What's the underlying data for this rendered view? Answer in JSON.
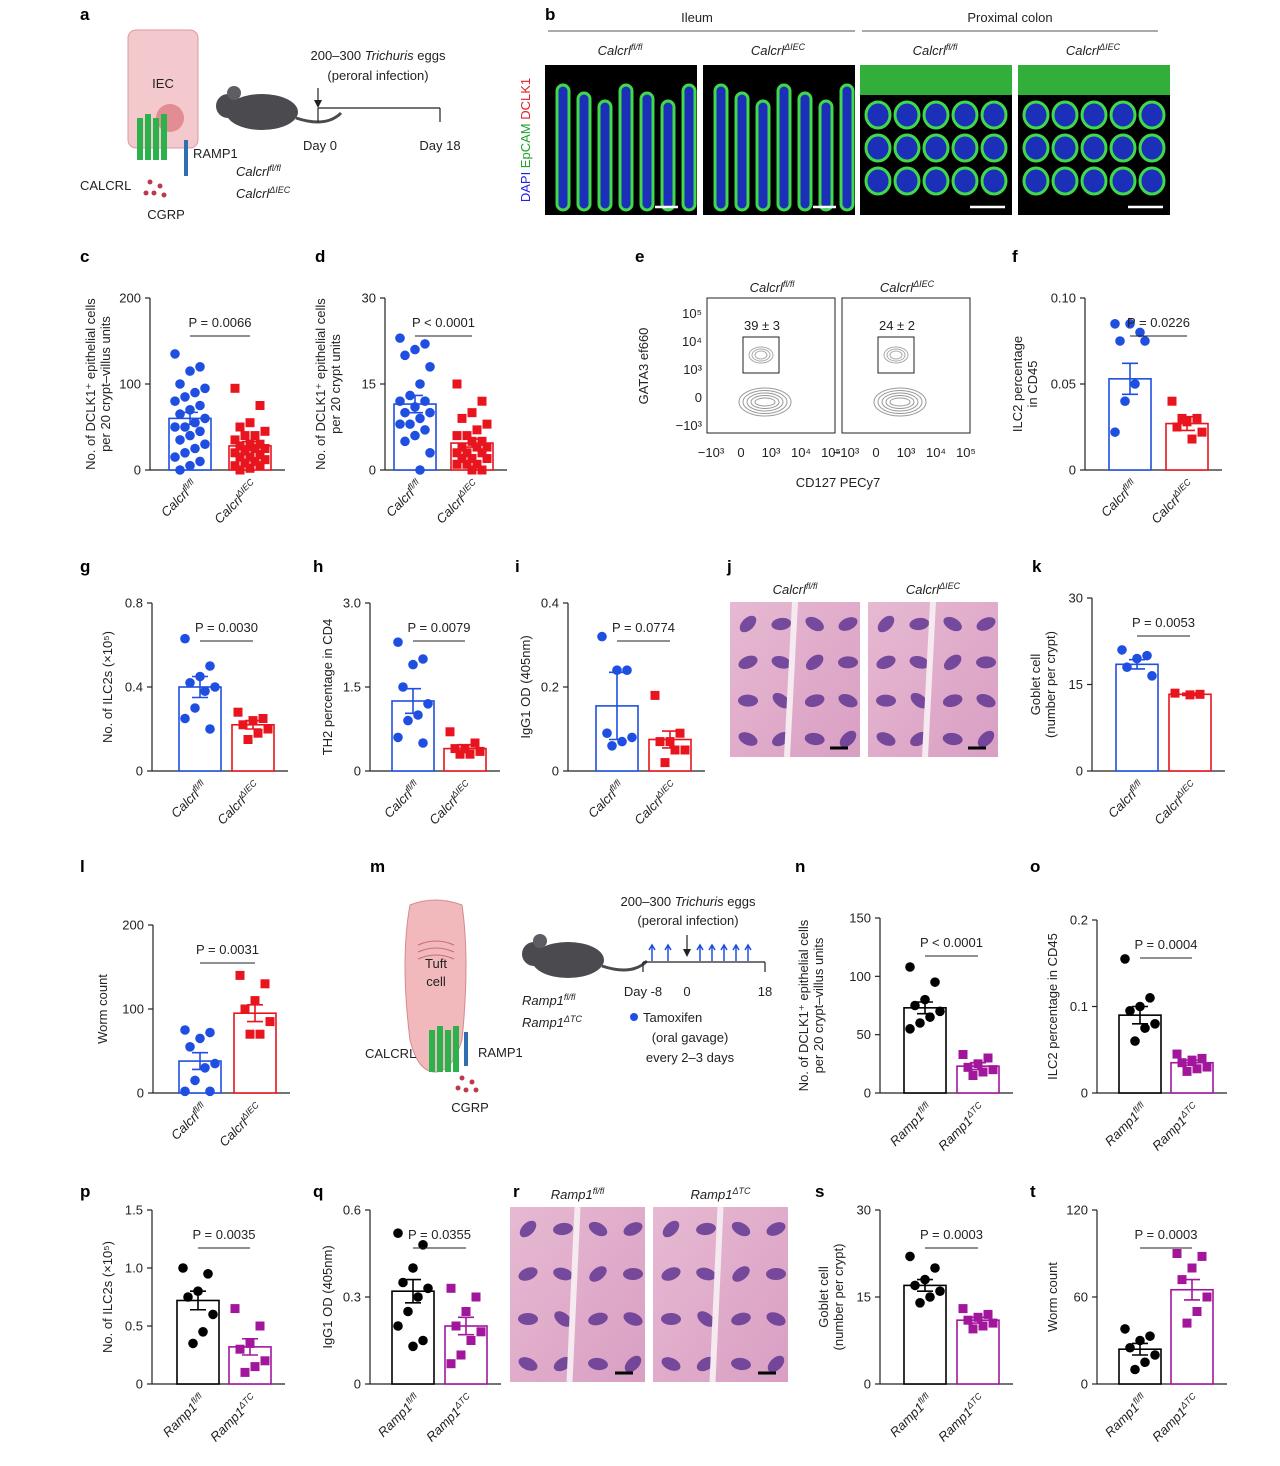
{
  "chart_data": [
    {
      "type": "bar",
      "panel": "c",
      "ylabel": [
        "No. of DCLK1⁺ epithelial cells",
        "per 20 crypt–villus units"
      ],
      "p_value": "P = 0.0066",
      "categories": [
        "Calcrl",
        "Calcrl"
      ],
      "category_sups": [
        "fl/fl",
        "ΔIEC"
      ],
      "colors": [
        "#1f4fe0",
        "#e8141e"
      ],
      "markers": [
        "circle",
        "square"
      ],
      "values": [
        60,
        28
      ],
      "errors": [
        7,
        5
      ],
      "points": [
        [
          135,
          120,
          115,
          100,
          95,
          90,
          85,
          80,
          75,
          70,
          65,
          60,
          55,
          50,
          50,
          45,
          40,
          35,
          30,
          25,
          20,
          15,
          10,
          5,
          0
        ],
        [
          95,
          75,
          55,
          50,
          45,
          40,
          40,
          35,
          30,
          30,
          28,
          25,
          25,
          22,
          20,
          18,
          15,
          15,
          12,
          10,
          8,
          5,
          5,
          2,
          0
        ]
      ],
      "ylim": [
        0,
        200
      ],
      "yticks": [
        0,
        100,
        200
      ]
    },
    {
      "type": "bar",
      "panel": "d",
      "ylabel": [
        "No. of DCLK1⁺ epithelial cells",
        "per 20 crypt units"
      ],
      "p_value": "P < 0.0001",
      "categories": [
        "Calcrl",
        "Calcrl"
      ],
      "category_sups": [
        "fl/fl",
        "ΔIEC"
      ],
      "colors": [
        "#1f4fe0",
        "#e8141e"
      ],
      "markers": [
        "circle",
        "square"
      ],
      "values": [
        11.5,
        4.7
      ],
      "errors": [
        1.5,
        0.7
      ],
      "points": [
        [
          23,
          22,
          21,
          20,
          18,
          15,
          13,
          12,
          12,
          11,
          10,
          10,
          9,
          8,
          8,
          7,
          6,
          5,
          3,
          0
        ],
        [
          15,
          12,
          10,
          9,
          8,
          7,
          6,
          6,
          5,
          5,
          4,
          4,
          4,
          3,
          3,
          3,
          2,
          2,
          2,
          1,
          1,
          1,
          0,
          0
        ]
      ],
      "ylim": [
        0,
        30
      ],
      "yticks": [
        0,
        15,
        30
      ]
    },
    {
      "type": "bar",
      "panel": "f",
      "ylabel": [
        "ILC2 percentage",
        "in CD45"
      ],
      "p_value": "P = 0.0226",
      "categories": [
        "Calcrl",
        "Calcrl"
      ],
      "category_sups": [
        "fl/fl",
        "ΔIEC"
      ],
      "colors": [
        "#1f4fe0",
        "#e8141e"
      ],
      "markers": [
        "circle",
        "square"
      ],
      "values": [
        0.053,
        0.027
      ],
      "errors": [
        0.009,
        0.004
      ],
      "points": [
        [
          0.085,
          0.08,
          0.085,
          0.075,
          0.075,
          0.05,
          0.04,
          0.022
        ],
        [
          0.04,
          0.03,
          0.028,
          0.025,
          0.022,
          0.018,
          0.03
        ]
      ],
      "ylim": [
        0,
        0.1
      ],
      "yticks": [
        0,
        0.05,
        {
          "value": 0.1,
          "label": "0.10"
        }
      ]
    },
    {
      "type": "bar",
      "panel": "g",
      "ylabel": [
        "No. of ILC2s (×10⁵)"
      ],
      "p_value": "P = 0.0030",
      "categories": [
        "Calcrl",
        "Calcrl"
      ],
      "category_sups": [
        "fl/fl",
        "ΔIEC"
      ],
      "colors": [
        "#1f4fe0",
        "#e8141e"
      ],
      "markers": [
        "circle",
        "square"
      ],
      "values": [
        0.4,
        0.22
      ],
      "errors": [
        0.05,
        0.02
      ],
      "points": [
        [
          0.63,
          0.5,
          0.45,
          0.42,
          0.4,
          0.38,
          0.3,
          0.25,
          0.2
        ],
        [
          0.28,
          0.25,
          0.24,
          0.22,
          0.2,
          0.18,
          0.15
        ]
      ],
      "ylim": [
        0,
        0.8
      ],
      "yticks": [
        0,
        0.4,
        0.8
      ]
    },
    {
      "type": "bar",
      "panel": "h",
      "ylabel": [
        "TH2 percentage in CD4"
      ],
      "p_value": "P = 0.0079",
      "categories": [
        "Calcrl",
        "Calcrl"
      ],
      "category_sups": [
        "fl/fl",
        "ΔIEC"
      ],
      "colors": [
        "#1f4fe0",
        "#e8141e"
      ],
      "markers": [
        "circle",
        "square"
      ],
      "values": [
        1.25,
        0.4
      ],
      "errors": [
        0.22,
        0.07
      ],
      "points": [
        [
          2.3,
          2.0,
          1.9,
          1.5,
          1.2,
          1.0,
          0.9,
          0.6,
          0.5
        ],
        [
          0.7,
          0.5,
          0.4,
          0.4,
          0.35,
          0.3,
          0.3
        ]
      ],
      "ylim": [
        0,
        3
      ],
      "yticks": [
        0,
        1.5,
        {
          "value": 3,
          "label": "3.0"
        }
      ]
    },
    {
      "type": "bar",
      "panel": "i",
      "ylabel": [
        "IgG1 OD (405nm)"
      ],
      "p_value": "P = 0.0774",
      "categories": [
        "Calcrl",
        "Calcrl"
      ],
      "category_sups": [
        "fl/fl",
        "ΔIEC"
      ],
      "colors": [
        "#1f4fe0",
        "#e8141e"
      ],
      "markers": [
        "circle",
        "square"
      ],
      "values": [
        0.155,
        0.075
      ],
      "errors": [
        0.08,
        0.02
      ],
      "points": [
        [
          0.32,
          0.24,
          0.24,
          0.09,
          0.08,
          0.07,
          0.06
        ],
        [
          0.18,
          0.09,
          0.07,
          0.07,
          0.05,
          0.05,
          0.02
        ]
      ],
      "ylim": [
        0,
        0.4
      ],
      "yticks": [
        0,
        0.2,
        0.4
      ]
    },
    {
      "type": "bar",
      "panel": "k",
      "ylabel": [
        "Goblet cell",
        "(number per crypt)"
      ],
      "p_value": "P = 0.0053",
      "categories": [
        "Calcrl",
        "Calcrl"
      ],
      "category_sups": [
        "fl/fl",
        "ΔIEC"
      ],
      "colors": [
        "#1f4fe0",
        "#e8141e"
      ],
      "markers": [
        "circle",
        "square"
      ],
      "values": [
        18.5,
        13.3
      ],
      "errors": [
        0.8,
        0.2
      ],
      "points": [
        [
          21,
          20,
          19.5,
          18,
          16.5
        ],
        [
          13.5,
          13.3,
          13.2
        ]
      ],
      "ylim": [
        0,
        30
      ],
      "yticks": [
        0,
        15,
        30
      ]
    },
    {
      "type": "bar",
      "panel": "l",
      "ylabel": [
        "Worm count"
      ],
      "p_value": "P = 0.0031",
      "categories": [
        "Calcrl",
        "Calcrl"
      ],
      "category_sups": [
        "fl/fl",
        "ΔIEC"
      ],
      "colors": [
        "#1f4fe0",
        "#e8141e"
      ],
      "markers": [
        "circle",
        "square"
      ],
      "values": [
        38,
        95
      ],
      "errors": [
        10,
        10
      ],
      "points": [
        [
          75,
          72,
          65,
          55,
          35,
          30,
          15,
          2,
          2
        ],
        [
          140,
          130,
          110,
          100,
          85,
          70,
          70
        ]
      ],
      "ylim": [
        0,
        200
      ],
      "yticks": [
        0,
        100,
        200
      ]
    },
    {
      "type": "bar",
      "panel": "n",
      "ylabel": [
        "No. of DCLK1⁺ epithelial cells",
        "per 20 crypt–villus units"
      ],
      "p_value": "P < 0.0001",
      "categories": [
        "Ramp1",
        "Ramp1"
      ],
      "category_sups": [
        "fl/fl",
        "ΔTC"
      ],
      "colors": [
        "#000000",
        "#a2169c"
      ],
      "markers": [
        "circle",
        "square"
      ],
      "values": [
        73,
        23
      ],
      "errors": [
        5,
        3
      ],
      "points": [
        [
          108,
          95,
          80,
          75,
          70,
          65,
          60,
          55
        ],
        [
          33,
          30,
          25,
          22,
          20,
          18,
          15
        ]
      ],
      "ylim": [
        0,
        150
      ],
      "yticks": [
        0,
        50,
        100,
        150
      ]
    },
    {
      "type": "bar",
      "panel": "o",
      "ylabel": [
        "ILC2 percentage in CD45"
      ],
      "p_value": "P = 0.0004",
      "categories": [
        "Ramp1",
        "Ramp1"
      ],
      "category_sups": [
        "fl/fl",
        "ΔTC"
      ],
      "colors": [
        "#000000",
        "#a2169c"
      ],
      "markers": [
        "circle",
        "square"
      ],
      "values": [
        0.09,
        0.035
      ],
      "errors": [
        0.01,
        0.003
      ],
      "points": [
        [
          0.155,
          0.11,
          0.1,
          0.095,
          0.08,
          0.075,
          0.06
        ],
        [
          0.045,
          0.04,
          0.038,
          0.035,
          0.03,
          0.028,
          0.025
        ]
      ],
      "ylim": [
        0,
        0.2
      ],
      "yticks": [
        0,
        0.1,
        0.2
      ]
    },
    {
      "type": "bar",
      "panel": "p",
      "ylabel": [
        "No. of ILC2s (×10⁵)"
      ],
      "p_value": "P = 0.0035",
      "categories": [
        "Ramp1",
        "Ramp1"
      ],
      "category_sups": [
        "fl/fl",
        "ΔTC"
      ],
      "colors": [
        "#000000",
        "#a2169c"
      ],
      "markers": [
        "circle",
        "square"
      ],
      "values": [
        0.72,
        0.32
      ],
      "errors": [
        0.08,
        0.07
      ],
      "points": [
        [
          1.0,
          0.95,
          0.8,
          0.75,
          0.6,
          0.45,
          0.35
        ],
        [
          0.65,
          0.5,
          0.35,
          0.3,
          0.2,
          0.15,
          0.1
        ]
      ],
      "ylim": [
        0,
        1.5
      ],
      "yticks": [
        0,
        0.5,
        {
          "value": 1,
          "label": "1.0"
        },
        1.5
      ]
    },
    {
      "type": "bar",
      "panel": "q",
      "ylabel": [
        "IgG1 OD (405nm)"
      ],
      "p_value": "P = 0.0355",
      "categories": [
        "Ramp1",
        "Ramp1"
      ],
      "category_sups": [
        "fl/fl",
        "ΔTC"
      ],
      "colors": [
        "#000000",
        "#a2169c"
      ],
      "markers": [
        "circle",
        "square"
      ],
      "values": [
        0.32,
        0.2
      ],
      "errors": [
        0.04,
        0.03
      ],
      "points": [
        [
          0.52,
          0.48,
          0.4,
          0.35,
          0.33,
          0.3,
          0.25,
          0.2,
          0.15,
          0.13
        ],
        [
          0.33,
          0.3,
          0.25,
          0.2,
          0.18,
          0.15,
          0.1,
          0.07
        ]
      ],
      "ylim": [
        0,
        0.6
      ],
      "yticks": [
        0,
        0.3,
        0.6
      ]
    },
    {
      "type": "bar",
      "panel": "s",
      "ylabel": [
        "Goblet cell",
        "(number per crypt)"
      ],
      "p_value": "P = 0.0003",
      "categories": [
        "Ramp1",
        "Ramp1"
      ],
      "category_sups": [
        "fl/fl",
        "ΔTC"
      ],
      "colors": [
        "#000000",
        "#a2169c"
      ],
      "markers": [
        "circle",
        "square"
      ],
      "values": [
        17,
        11
      ],
      "errors": [
        1,
        0.5
      ],
      "points": [
        [
          22,
          20,
          18,
          17,
          16,
          15,
          14
        ],
        [
          13,
          12,
          11.5,
          11,
          10.5,
          10,
          9.5
        ]
      ],
      "ylim": [
        0,
        30
      ],
      "yticks": [
        0,
        15,
        30
      ]
    },
    {
      "type": "bar",
      "panel": "t",
      "ylabel": [
        "Worm count"
      ],
      "p_value": "P = 0.0003",
      "categories": [
        "Ramp1",
        "Ramp1"
      ],
      "category_sups": [
        "fl/fl",
        "ΔTC"
      ],
      "colors": [
        "#000000",
        "#a2169c"
      ],
      "markers": [
        "circle",
        "square"
      ],
      "values": [
        24,
        65
      ],
      "errors": [
        4,
        7
      ],
      "points": [
        [
          38,
          33,
          30,
          25,
          20,
          15,
          10
        ],
        [
          90,
          88,
          80,
          72,
          60,
          50,
          42
        ]
      ],
      "ylim": [
        0,
        120
      ],
      "yticks": [
        0,
        60,
        120
      ]
    }
  ],
  "panel_a": {
    "label": "a",
    "cell": "IEC",
    "receptor": "CALCRL",
    "coreceptor": "RAMP1",
    "ligand": "CGRP",
    "infection": [
      "200–300",
      "Trichuris",
      "eggs"
    ],
    "route": "(peroral infection)",
    "days": [
      "Day 0",
      "Day 18"
    ],
    "genotypes": [
      {
        "base": "Calcrl",
        "sup": "fl/fl"
      },
      {
        "base": "Calcrl",
        "sup": "ΔIEC"
      }
    ]
  },
  "panel_b": {
    "label": "b",
    "regions": [
      "Ileum",
      "Proximal colon"
    ],
    "stain": [
      "DAPI",
      "EpCAM",
      "DCLK1"
    ],
    "genotypes": [
      {
        "base": "Calcrl",
        "sup": "fl/fl"
      },
      {
        "base": "Calcrl",
        "sup": "ΔIEC"
      },
      {
        "base": "Calcrl",
        "sup": "fl/fl"
      },
      {
        "base": "Calcrl",
        "sup": "ΔIEC"
      }
    ]
  },
  "panel_e": {
    "label": "e",
    "genotypes": [
      {
        "base": "Calcrl",
        "sup": "fl/fl"
      },
      {
        "base": "Calcrl",
        "sup": "ΔIEC"
      }
    ],
    "gates": [
      "39 ± 3",
      "24 ± 2"
    ],
    "ylabel": "GATA3 ef660",
    "xlabel": "CD127 PECy7",
    "yticks": [
      "10⁵",
      "10⁴",
      "10³",
      "0",
      "−10³"
    ],
    "xticks": [
      "−10³",
      "0",
      "10³",
      "10⁴",
      "10⁵"
    ]
  },
  "panel_j": {
    "label": "j",
    "genotypes": [
      {
        "base": "Calcrl",
        "sup": "fl/fl"
      },
      {
        "base": "Calcrl",
        "sup": "ΔIEC"
      }
    ]
  },
  "panel_m": {
    "label": "m",
    "cell": [
      "Tuft",
      "cell"
    ],
    "receptor": "CALCRL",
    "coreceptor": "RAMP1",
    "ligand": "CGRP",
    "infection": [
      "200–300",
      "Trichuris",
      "eggs"
    ],
    "route": "(peroral infection)",
    "days": [
      "Day -8",
      "0",
      "18"
    ],
    "legend": [
      "Tamoxifen",
      "(oral gavage)",
      "every 2–3 days"
    ],
    "genotypes": [
      {
        "base": "Ramp1",
        "sup": "fl/fl"
      },
      {
        "base": "Ramp1",
        "sup": "ΔTC"
      }
    ]
  },
  "panel_r": {
    "label": "r",
    "genotypes": [
      {
        "base": "Ramp1",
        "sup": "fl/fl"
      },
      {
        "base": "Ramp1",
        "sup": "ΔTC"
      }
    ]
  }
}
